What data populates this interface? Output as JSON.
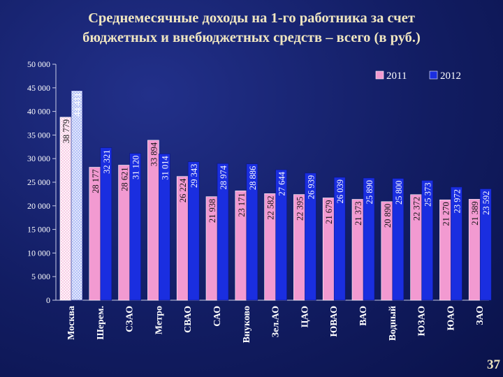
{
  "slide": {
    "title_line1": "Среднемесячные доходы на 1-го работника за счет",
    "title_line2": "бюджетных и внебюджетных средств – всего (в руб.)",
    "page_number": "37"
  },
  "chart_data": {
    "type": "bar",
    "title": "Среднемесячные доходы на 1-го работника за счет бюджетных и внебюджетных средств – всего (в руб.)",
    "categories": [
      "Москва",
      "Шерем.",
      "СЗАО",
      "Метро",
      "СВАО",
      "САО",
      "Внуково",
      "Зел.АО",
      "ЦАО",
      "ЮВАО",
      "ВАО",
      "Водный",
      "ЮЗАО",
      "ЮАО",
      "ЗАО"
    ],
    "series": [
      {
        "name": "2011",
        "values": [
          38779,
          28177,
          28621,
          33894,
          26224,
          21938,
          23171,
          22582,
          22395,
          21679,
          21373,
          20890,
          22372,
          21270,
          21389
        ],
        "labels": [
          "38 779",
          "28 177",
          "28 621",
          "33 894",
          "26 224",
          "21 938",
          "23 171",
          "22 582",
          "22 395",
          "21 679",
          "21 373",
          "20 890",
          "22 372",
          "21 270",
          "21 389"
        ],
        "color": "#f29ad1"
      },
      {
        "name": "2012",
        "values": [
          44411,
          32321,
          31120,
          31014,
          29343,
          28974,
          28886,
          27644,
          26939,
          26039,
          25890,
          25800,
          25373,
          23972,
          23592
        ],
        "labels": [
          "44 411",
          "32 321",
          "31 120",
          "31 014",
          "29 343",
          "28 974",
          "28 886",
          "27 644",
          "26 939",
          "26 039",
          "25 890",
          "25 800",
          "25 373",
          "23 972",
          "23 592"
        ],
        "color": "#1a2ee0"
      }
    ],
    "ylim": [
      0,
      50000
    ],
    "ytick_labels": [
      "0",
      "5 000",
      "10 000",
      "15 000",
      "20 000",
      "25 000",
      "30 000",
      "35 000",
      "40 000",
      "45 000",
      "50 000"
    ],
    "legend": {
      "position": "top-right",
      "labels": [
        "2011",
        "2012"
      ]
    },
    "grid": false,
    "highlight_first_category": true
  }
}
